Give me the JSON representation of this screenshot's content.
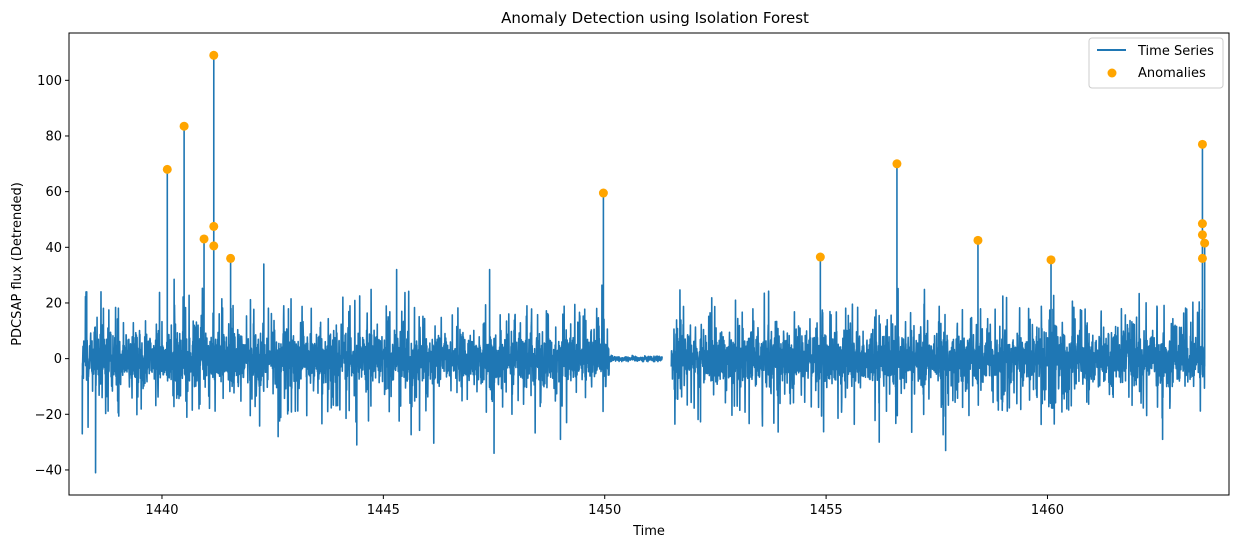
{
  "chart_data": {
    "type": "line",
    "title": "Anomaly Detection using Isolation Forest",
    "xlabel": "Time",
    "ylabel": "PDCSAP flux (Detrended)",
    "xlim": [
      1437.9,
      1464.1
    ],
    "ylim": [
      -49,
      117
    ],
    "x_ticks": [
      1440,
      1445,
      1450,
      1455,
      1460
    ],
    "y_ticks": [
      -40,
      -20,
      0,
      20,
      40,
      60,
      80,
      100
    ],
    "grid": false,
    "legend_position": "top-right",
    "series": [
      {
        "name": "Time Series",
        "kind": "line",
        "color": "#1f77b4",
        "data_gap": [
          1451.3,
          1451.5
        ],
        "quiet_interval": [
          1450.1,
          1451.3
        ],
        "typical_range": [
          -12,
          12
        ],
        "extremes": [
          {
            "x": 1438.2,
            "y": -27
          },
          {
            "x": 1438.5,
            "y": -41
          },
          {
            "x": 1438.3,
            "y": 24
          },
          {
            "x": 1442.3,
            "y": 34
          },
          {
            "x": 1444.4,
            "y": -31
          },
          {
            "x": 1445.3,
            "y": 32
          },
          {
            "x": 1447.4,
            "y": 32
          },
          {
            "x": 1447.5,
            "y": -34
          },
          {
            "x": 1449.0,
            "y": -29
          },
          {
            "x": 1456.2,
            "y": -30
          },
          {
            "x": 1457.7,
            "y": -33
          },
          {
            "x": 1462.6,
            "y": -29
          }
        ]
      },
      {
        "name": "Anomalies",
        "kind": "scatter",
        "color": "#ffa500",
        "points": [
          {
            "x": 1440.12,
            "y": 68
          },
          {
            "x": 1440.5,
            "y": 83.5
          },
          {
            "x": 1440.95,
            "y": 43
          },
          {
            "x": 1441.17,
            "y": 109
          },
          {
            "x": 1441.17,
            "y": 47.5
          },
          {
            "x": 1441.17,
            "y": 40.5
          },
          {
            "x": 1441.55,
            "y": 36
          },
          {
            "x": 1449.97,
            "y": 59.5
          },
          {
            "x": 1454.87,
            "y": 36.5
          },
          {
            "x": 1456.6,
            "y": 70
          },
          {
            "x": 1458.43,
            "y": 42.5
          },
          {
            "x": 1460.08,
            "y": 35.5
          },
          {
            "x": 1463.5,
            "y": 77
          },
          {
            "x": 1463.5,
            "y": 48.5
          },
          {
            "x": 1463.5,
            "y": 44.5
          },
          {
            "x": 1463.55,
            "y": 41.5
          },
          {
            "x": 1463.5,
            "y": 36
          }
        ]
      }
    ]
  }
}
